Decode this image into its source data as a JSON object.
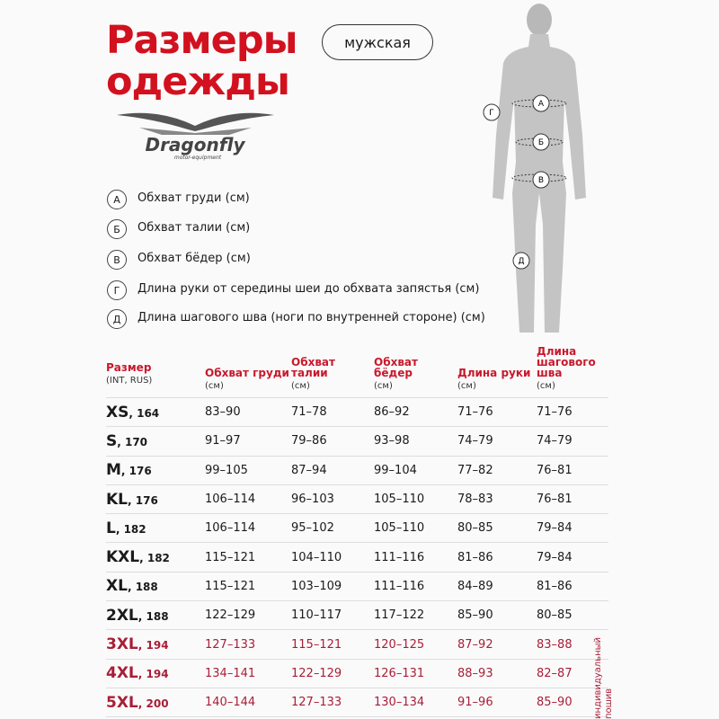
{
  "header": {
    "title_line1": "Размеры",
    "title_line2": "одежды",
    "gender": "мужская"
  },
  "logo": {
    "brand": "Dragonfly",
    "tagline": "motor-equipment"
  },
  "legend": [
    {
      "mark": "А",
      "text": "Обхват груди (см)"
    },
    {
      "mark": "Б",
      "text": "Обхват талии (см)"
    },
    {
      "mark": "В",
      "text": "Обхват бёдер (см)"
    },
    {
      "mark": "Г",
      "text": "Длина руки от середины шеи до обхвата запястья (см)"
    },
    {
      "mark": "Д",
      "text": "Длина шагового шва (ноги по внутренней стороне) (см)"
    }
  ],
  "figure_marks": {
    "a": "А",
    "b": "Б",
    "v": "В",
    "g": "Г",
    "d": "Д"
  },
  "table": {
    "headers": [
      {
        "title": "Размер",
        "unit": "(INT, RUS)"
      },
      {
        "title": "Обхват груди",
        "unit": "(см)"
      },
      {
        "title": "Обхват талии",
        "unit": "(см)"
      },
      {
        "title": "Обхват бёдер",
        "unit": "(см)"
      },
      {
        "title": "Длина руки",
        "unit": "(см)"
      },
      {
        "title": "Длина шагового шва",
        "unit": "(см)"
      }
    ],
    "rows": [
      {
        "size": "XS",
        "height": ", 164",
        "cells": [
          "83–90",
          "71–78",
          "86–92",
          "71–76",
          "71–76"
        ],
        "highlight": false
      },
      {
        "size": "S",
        "height": ", 170",
        "cells": [
          "91–97",
          "79–86",
          "93–98",
          "74–79",
          "74–79"
        ],
        "highlight": false
      },
      {
        "size": "M",
        "height": ", 176",
        "cells": [
          "99–105",
          "87–94",
          "99–104",
          "77–82",
          "76–81"
        ],
        "highlight": false
      },
      {
        "size": "KL",
        "height": ", 176",
        "cells": [
          "106–114",
          "96–103",
          "105–110",
          "78–83",
          "76–81"
        ],
        "highlight": false
      },
      {
        "size": "L",
        "height": ", 182",
        "cells": [
          "106–114",
          "95–102",
          "105–110",
          "80–85",
          "79–84"
        ],
        "highlight": false
      },
      {
        "size": "KXL",
        "height": ", 182",
        "cells": [
          "115–121",
          "104–110",
          "111–116",
          "81–86",
          "79–84"
        ],
        "highlight": false
      },
      {
        "size": "XL",
        "height": ", 188",
        "cells": [
          "115–121",
          "103–109",
          "111–116",
          "84–89",
          "81–86"
        ],
        "highlight": false
      },
      {
        "size": "2XL",
        "height": ", 188",
        "cells": [
          "122–129",
          "110–117",
          "117–122",
          "85–90",
          "80–85"
        ],
        "highlight": false
      },
      {
        "size": "3XL",
        "height": ", 194",
        "cells": [
          "127–133",
          "115–121",
          "120–125",
          "87–92",
          "83–88"
        ],
        "highlight": true
      },
      {
        "size": "4XL",
        "height": ", 194",
        "cells": [
          "134–141",
          "122–129",
          "126–131",
          "88–93",
          "82–87"
        ],
        "highlight": true
      },
      {
        "size": "5XL",
        "height": ", 200",
        "cells": [
          "140–144",
          "127–133",
          "130–134",
          "91–96",
          "85–90"
        ],
        "highlight": true
      }
    ],
    "note": "индивидуальный пошив"
  },
  "colors": {
    "brand_red": "#d2111f",
    "highlight_red": "#a81e36"
  }
}
